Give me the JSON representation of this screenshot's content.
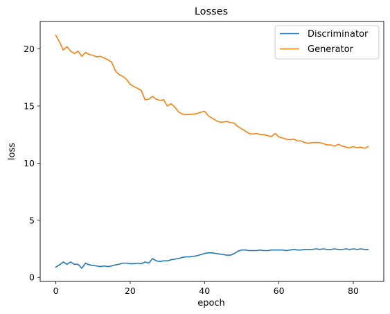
{
  "chart_data": {
    "type": "line",
    "title": "Losses",
    "xlabel": "epoch",
    "ylabel": "loss",
    "xlim": [
      -4.2,
      88.2
    ],
    "ylim": [
      -0.35,
      22.4
    ],
    "xticks": [
      0,
      20,
      40,
      60,
      80
    ],
    "yticks": [
      0,
      5,
      10,
      15,
      20
    ],
    "grid": false,
    "legend_position": "top-right",
    "series": [
      {
        "name": "Discriminator",
        "color": "#1f77b4",
        "x": [
          0,
          1,
          2,
          3,
          4,
          5,
          6,
          7,
          8,
          9,
          10,
          11,
          12,
          13,
          14,
          15,
          16,
          17,
          18,
          19,
          20,
          21,
          22,
          23,
          24,
          25,
          26,
          27,
          28,
          29,
          30,
          31,
          32,
          33,
          34,
          35,
          36,
          37,
          38,
          39,
          40,
          41,
          42,
          43,
          44,
          45,
          46,
          47,
          48,
          49,
          50,
          51,
          52,
          53,
          54,
          55,
          56,
          57,
          58,
          59,
          60,
          61,
          62,
          63,
          64,
          65,
          66,
          67,
          68,
          69,
          70,
          71,
          72,
          73,
          74,
          75,
          76,
          77,
          78,
          79,
          80,
          81,
          82,
          83,
          84
        ],
        "values": [
          0.9,
          1.1,
          1.35,
          1.15,
          1.35,
          1.15,
          1.15,
          0.8,
          1.25,
          1.1,
          1.05,
          1.0,
          0.95,
          1.0,
          0.95,
          1.0,
          1.1,
          1.15,
          1.25,
          1.25,
          1.2,
          1.2,
          1.25,
          1.2,
          1.35,
          1.25,
          1.65,
          1.45,
          1.4,
          1.45,
          1.45,
          1.55,
          1.6,
          1.65,
          1.75,
          1.8,
          1.8,
          1.85,
          1.9,
          2.0,
          2.1,
          2.15,
          2.15,
          2.1,
          2.05,
          2.0,
          1.95,
          1.95,
          2.1,
          2.3,
          2.4,
          2.4,
          2.35,
          2.35,
          2.35,
          2.4,
          2.35,
          2.35,
          2.4,
          2.4,
          2.4,
          2.4,
          2.35,
          2.4,
          2.45,
          2.4,
          2.4,
          2.45,
          2.45,
          2.45,
          2.5,
          2.45,
          2.5,
          2.45,
          2.45,
          2.5,
          2.45,
          2.45,
          2.5,
          2.45,
          2.5,
          2.45,
          2.5,
          2.45,
          2.45
        ]
      },
      {
        "name": "Generator",
        "color": "#ff7f0e",
        "x": [
          0,
          1,
          2,
          3,
          4,
          5,
          6,
          7,
          8,
          9,
          10,
          11,
          12,
          13,
          14,
          15,
          16,
          17,
          18,
          19,
          20,
          21,
          22,
          23,
          24,
          25,
          26,
          27,
          28,
          29,
          30,
          31,
          32,
          33,
          34,
          35,
          36,
          37,
          38,
          39,
          40,
          41,
          42,
          43,
          44,
          45,
          46,
          47,
          48,
          49,
          50,
          51,
          52,
          53,
          54,
          55,
          56,
          57,
          58,
          59,
          60,
          61,
          62,
          63,
          64,
          65,
          66,
          67,
          68,
          69,
          70,
          71,
          72,
          73,
          74,
          75,
          76,
          77,
          78,
          79,
          80,
          81,
          82,
          83,
          84
        ],
        "values": [
          21.2,
          20.6,
          19.9,
          20.2,
          19.8,
          19.6,
          19.8,
          19.35,
          19.7,
          19.5,
          19.45,
          19.3,
          19.35,
          19.2,
          19.05,
          18.85,
          18.1,
          17.75,
          17.6,
          17.35,
          16.9,
          16.7,
          16.55,
          16.35,
          15.55,
          15.6,
          15.85,
          15.6,
          15.5,
          15.55,
          15.0,
          15.2,
          14.9,
          14.5,
          14.3,
          14.25,
          14.25,
          14.3,
          14.35,
          14.45,
          14.55,
          14.15,
          13.95,
          13.75,
          13.6,
          13.6,
          13.65,
          13.55,
          13.5,
          13.2,
          13.0,
          12.8,
          12.6,
          12.55,
          12.6,
          12.5,
          12.5,
          12.4,
          12.35,
          12.6,
          12.3,
          12.2,
          12.1,
          12.05,
          12.1,
          11.95,
          11.95,
          11.8,
          11.75,
          11.8,
          11.8,
          11.8,
          11.7,
          11.6,
          11.6,
          11.5,
          11.65,
          11.5,
          11.4,
          11.35,
          11.45,
          11.35,
          11.4,
          11.3,
          11.45
        ]
      }
    ]
  }
}
